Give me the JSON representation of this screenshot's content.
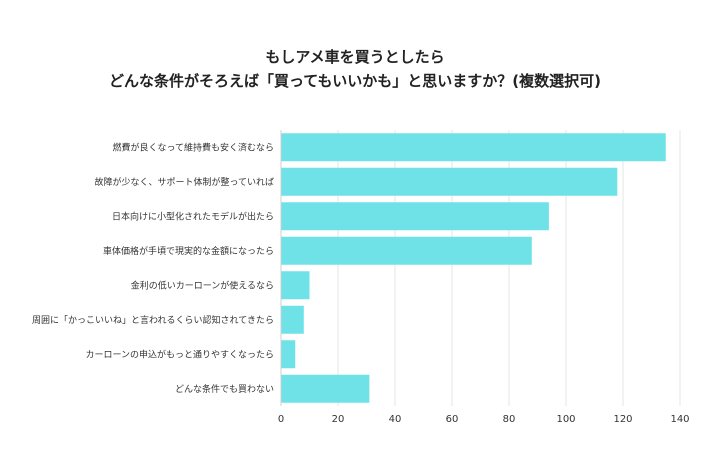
{
  "title_line1": "もしアメ車を買うとしたら",
  "title_line2": "どんな条件がそろえば「買ってもいいかも」と思いますか？(複数選択可)",
  "colors": {
    "bar": "#6fe2e8",
    "grid": "#e6e6e6"
  },
  "chart_data": {
    "type": "bar",
    "orientation": "horizontal",
    "title": "もしアメ車を買うとしたら どんな条件がそろえば「買ってもいいかも」と思いますか？(複数選択可)",
    "categories": [
      "燃費が良くなって維持費も安く済むなら",
      "故障が少なく、サポート体制が整っていれば",
      "日本向けに小型化されたモデルが出たら",
      "車体価格が手頃で現実的な金額になったら",
      "金利の低いカーローンが使えるなら",
      "周囲に「かっこいいね」と言われるくらい認知されてきたら",
      "カーローンの申込がもっと通りやすくなったら",
      "どんな条件でも買わない"
    ],
    "values": [
      135,
      118,
      94,
      88,
      10,
      8,
      5,
      31
    ],
    "xlim": [
      0,
      140
    ],
    "xticks": [
      0,
      20,
      40,
      60,
      80,
      100,
      120,
      140
    ],
    "grid": true
  }
}
